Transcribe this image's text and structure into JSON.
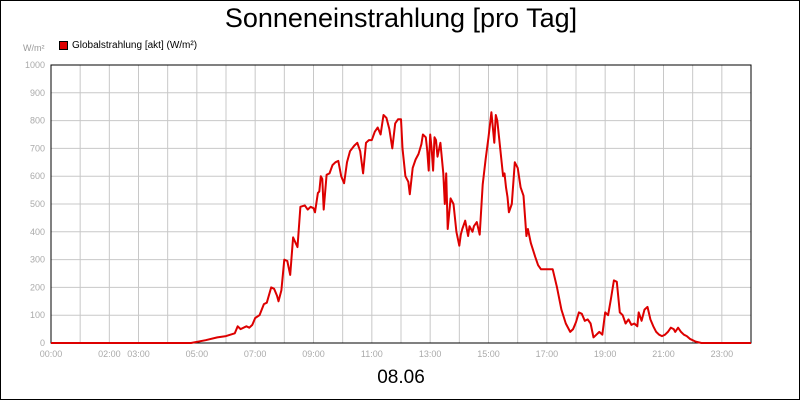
{
  "chart_data": {
    "type": "line",
    "title": "Sonneneinstrahlung [pro Tag]",
    "ylabel": "W/m²",
    "xlabel": "",
    "date": "08.06",
    "ylim": [
      0,
      1000
    ],
    "yticks": [
      0,
      100,
      200,
      300,
      400,
      500,
      600,
      700,
      800,
      900,
      1000
    ],
    "xlim": [
      0,
      24
    ],
    "xticks": [
      {
        "pos": 0,
        "label": "00:00"
      },
      {
        "pos": 2,
        "label": "02:00"
      },
      {
        "pos": 3,
        "label": "03:00"
      },
      {
        "pos": 5,
        "label": "05:00"
      },
      {
        "pos": 7,
        "label": "07:00"
      },
      {
        "pos": 9,
        "label": "09:00"
      },
      {
        "pos": 11,
        "label": "11:00"
      },
      {
        "pos": 13,
        "label": "13:00"
      },
      {
        "pos": 15,
        "label": "15:00"
      },
      {
        "pos": 17,
        "label": "17:00"
      },
      {
        "pos": 19,
        "label": "19:00"
      },
      {
        "pos": 21,
        "label": "21:00"
      },
      {
        "pos": 23,
        "label": "23:00"
      }
    ],
    "grid": true,
    "legend_position": "top-left",
    "series": [
      {
        "name": "Globalstrahlung [akt] (W/m²)",
        "color": "#dd0000",
        "points": [
          [
            0.0,
            0
          ],
          [
            4.8,
            0
          ],
          [
            5.3,
            10
          ],
          [
            5.7,
            20
          ],
          [
            6.0,
            25
          ],
          [
            6.3,
            35
          ],
          [
            6.4,
            60
          ],
          [
            6.5,
            50
          ],
          [
            6.7,
            60
          ],
          [
            6.8,
            55
          ],
          [
            6.9,
            65
          ],
          [
            7.0,
            90
          ],
          [
            7.15,
            100
          ],
          [
            7.3,
            140
          ],
          [
            7.4,
            145
          ],
          [
            7.55,
            200
          ],
          [
            7.65,
            195
          ],
          [
            7.75,
            170
          ],
          [
            7.8,
            150
          ],
          [
            7.9,
            190
          ],
          [
            8.0,
            300
          ],
          [
            8.1,
            295
          ],
          [
            8.2,
            245
          ],
          [
            8.3,
            380
          ],
          [
            8.45,
            345
          ],
          [
            8.55,
            490
          ],
          [
            8.7,
            495
          ],
          [
            8.8,
            480
          ],
          [
            8.9,
            490
          ],
          [
            9.0,
            485
          ],
          [
            9.05,
            470
          ],
          [
            9.15,
            540
          ],
          [
            9.2,
            545
          ],
          [
            9.25,
            600
          ],
          [
            9.3,
            590
          ],
          [
            9.35,
            480
          ],
          [
            9.45,
            605
          ],
          [
            9.55,
            610
          ],
          [
            9.65,
            640
          ],
          [
            9.75,
            650
          ],
          [
            9.85,
            655
          ],
          [
            9.95,
            600
          ],
          [
            10.05,
            575
          ],
          [
            10.15,
            650
          ],
          [
            10.25,
            690
          ],
          [
            10.4,
            710
          ],
          [
            10.5,
            720
          ],
          [
            10.6,
            690
          ],
          [
            10.7,
            610
          ],
          [
            10.8,
            720
          ],
          [
            10.9,
            730
          ],
          [
            11.0,
            730
          ],
          [
            11.1,
            760
          ],
          [
            11.2,
            775
          ],
          [
            11.3,
            750
          ],
          [
            11.4,
            820
          ],
          [
            11.5,
            810
          ],
          [
            11.6,
            770
          ],
          [
            11.7,
            700
          ],
          [
            11.8,
            790
          ],
          [
            11.9,
            805
          ],
          [
            12.0,
            805
          ],
          [
            12.05,
            700
          ],
          [
            12.15,
            600
          ],
          [
            12.25,
            580
          ],
          [
            12.3,
            535
          ],
          [
            12.4,
            630
          ],
          [
            12.5,
            660
          ],
          [
            12.6,
            680
          ],
          [
            12.7,
            715
          ],
          [
            12.75,
            750
          ],
          [
            12.85,
            740
          ],
          [
            12.9,
            690
          ],
          [
            12.95,
            620
          ],
          [
            13.0,
            750
          ],
          [
            13.05,
            700
          ],
          [
            13.1,
            620
          ],
          [
            13.15,
            740
          ],
          [
            13.2,
            730
          ],
          [
            13.25,
            670
          ],
          [
            13.35,
            720
          ],
          [
            13.45,
            610
          ],
          [
            13.5,
            500
          ],
          [
            13.55,
            610
          ],
          [
            13.6,
            410
          ],
          [
            13.7,
            520
          ],
          [
            13.8,
            500
          ],
          [
            13.9,
            400
          ],
          [
            14.0,
            350
          ],
          [
            14.05,
            390
          ],
          [
            14.1,
            410
          ],
          [
            14.2,
            440
          ],
          [
            14.3,
            385
          ],
          [
            14.35,
            420
          ],
          [
            14.45,
            400
          ],
          [
            14.5,
            420
          ],
          [
            14.6,
            435
          ],
          [
            14.7,
            390
          ],
          [
            14.8,
            570
          ],
          [
            14.9,
            660
          ],
          [
            15.0,
            740
          ],
          [
            15.1,
            830
          ],
          [
            15.2,
            720
          ],
          [
            15.25,
            820
          ],
          [
            15.3,
            800
          ],
          [
            15.4,
            700
          ],
          [
            15.5,
            600
          ],
          [
            15.55,
            610
          ],
          [
            15.6,
            560
          ],
          [
            15.65,
            525
          ],
          [
            15.7,
            470
          ],
          [
            15.8,
            500
          ],
          [
            15.9,
            650
          ],
          [
            16.0,
            630
          ],
          [
            16.1,
            560
          ],
          [
            16.2,
            530
          ],
          [
            16.3,
            385
          ],
          [
            16.35,
            410
          ],
          [
            16.45,
            360
          ],
          [
            16.6,
            310
          ],
          [
            16.7,
            280
          ],
          [
            16.8,
            265
          ],
          [
            17.0,
            265
          ],
          [
            17.2,
            265
          ],
          [
            17.35,
            200
          ],
          [
            17.5,
            120
          ],
          [
            17.65,
            70
          ],
          [
            17.8,
            40
          ],
          [
            17.9,
            50
          ],
          [
            18.0,
            75
          ],
          [
            18.1,
            110
          ],
          [
            18.2,
            105
          ],
          [
            18.3,
            80
          ],
          [
            18.4,
            85
          ],
          [
            18.5,
            70
          ],
          [
            18.6,
            20
          ],
          [
            18.7,
            30
          ],
          [
            18.8,
            40
          ],
          [
            18.9,
            30
          ],
          [
            19.0,
            110
          ],
          [
            19.1,
            100
          ],
          [
            19.2,
            160
          ],
          [
            19.3,
            225
          ],
          [
            19.4,
            220
          ],
          [
            19.5,
            110
          ],
          [
            19.6,
            100
          ],
          [
            19.7,
            70
          ],
          [
            19.8,
            85
          ],
          [
            19.9,
            65
          ],
          [
            20.0,
            70
          ],
          [
            20.1,
            60
          ],
          [
            20.15,
            110
          ],
          [
            20.25,
            80
          ],
          [
            20.35,
            120
          ],
          [
            20.45,
            130
          ],
          [
            20.55,
            85
          ],
          [
            20.65,
            60
          ],
          [
            20.75,
            40
          ],
          [
            20.85,
            30
          ],
          [
            20.95,
            25
          ],
          [
            21.05,
            30
          ],
          [
            21.15,
            40
          ],
          [
            21.25,
            55
          ],
          [
            21.35,
            50
          ],
          [
            21.4,
            40
          ],
          [
            21.5,
            55
          ],
          [
            21.6,
            40
          ],
          [
            21.7,
            30
          ],
          [
            21.8,
            25
          ],
          [
            21.9,
            15
          ],
          [
            22.1,
            5
          ],
          [
            22.3,
            0
          ],
          [
            24.0,
            0
          ]
        ]
      }
    ]
  }
}
